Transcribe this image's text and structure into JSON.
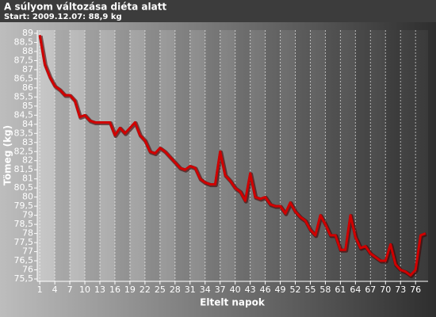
{
  "chart_data": {
    "type": "line",
    "title": "A súlyom változása diéta alatt",
    "subtitle": "Start: 2009.12.07: 88,9 kg",
    "x_label": "Eltelt napok",
    "y_label": "Tömeg (kg)",
    "x": [
      1,
      2,
      3,
      4,
      5,
      6,
      7,
      8,
      9,
      10,
      11,
      12,
      13,
      14,
      15,
      16,
      17,
      18,
      19,
      20,
      21,
      22,
      23,
      24,
      25,
      26,
      27,
      28,
      29,
      30,
      31,
      32,
      33,
      34,
      35,
      36,
      37,
      38,
      39,
      40,
      41,
      42,
      43,
      44,
      45,
      46,
      47,
      48,
      49,
      50,
      51,
      52,
      53,
      54,
      55,
      56,
      57,
      58,
      59,
      60,
      61,
      62,
      63,
      64,
      65,
      66,
      67,
      68,
      69,
      70,
      71,
      72,
      73,
      74,
      75,
      76,
      77,
      78
    ],
    "series": [
      {
        "color": "#d00000",
        "values": [
          88.9,
          87.3,
          86.6,
          86.1,
          85.9,
          85.6,
          85.6,
          85.3,
          84.4,
          84.5,
          84.2,
          84.1,
          84.1,
          84.1,
          84.1,
          83.4,
          83.8,
          83.5,
          83.8,
          84.1,
          83.4,
          83.1,
          82.5,
          82.4,
          82.7,
          82.5,
          82.2,
          81.9,
          81.6,
          81.5,
          81.7,
          81.6,
          81.0,
          80.8,
          80.7,
          80.7,
          82.5,
          81.2,
          80.9,
          80.5,
          80.3,
          79.8,
          81.3,
          80.0,
          79.9,
          80.0,
          79.6,
          79.5,
          79.5,
          79.1,
          79.7,
          79.2,
          78.9,
          78.7,
          78.2,
          77.9,
          79.0,
          78.5,
          77.9,
          77.9,
          77.1,
          77.1,
          79.0,
          77.8,
          77.2,
          77.3,
          76.9,
          76.7,
          76.5,
          76.5,
          77.4,
          76.3,
          76.0,
          75.9,
          75.7,
          76.0,
          77.9,
          78.0
        ]
      }
    ],
    "xlim": [
      0.5,
      78.5
    ],
    "xticks": [
      1,
      4,
      7,
      10,
      13,
      16,
      19,
      22,
      25,
      28,
      31,
      34,
      37,
      40,
      43,
      46,
      49,
      52,
      55,
      58,
      61,
      64,
      67,
      70,
      73,
      76
    ],
    "ylim": [
      75.5,
      89
    ],
    "yticks": [
      {
        "value": 75.5,
        "label": "75,5"
      },
      76,
      {
        "value": 76.5,
        "label": "76,5"
      },
      77,
      {
        "value": 77.5,
        "label": "77,5"
      },
      78,
      {
        "value": 78.5,
        "label": "78,5"
      },
      79,
      {
        "value": 79.5,
        "label": "79,5"
      },
      80,
      {
        "value": 80.5,
        "label": "80,5"
      },
      81,
      {
        "value": 81.5,
        "label": "81,5"
      },
      82,
      {
        "value": 82.5,
        "label": "82,5"
      },
      83,
      {
        "value": 83.5,
        "label": "83,5"
      },
      84,
      {
        "value": 84.5,
        "label": "84,5"
      },
      85,
      {
        "value": 85.5,
        "label": "85,5"
      },
      86,
      {
        "value": 86.5,
        "label": "86,5"
      },
      87,
      {
        "value": 87.5,
        "label": "87,5"
      },
      88,
      {
        "value": 88.5,
        "label": "88,5"
      },
      89
    ],
    "grid": true
  }
}
